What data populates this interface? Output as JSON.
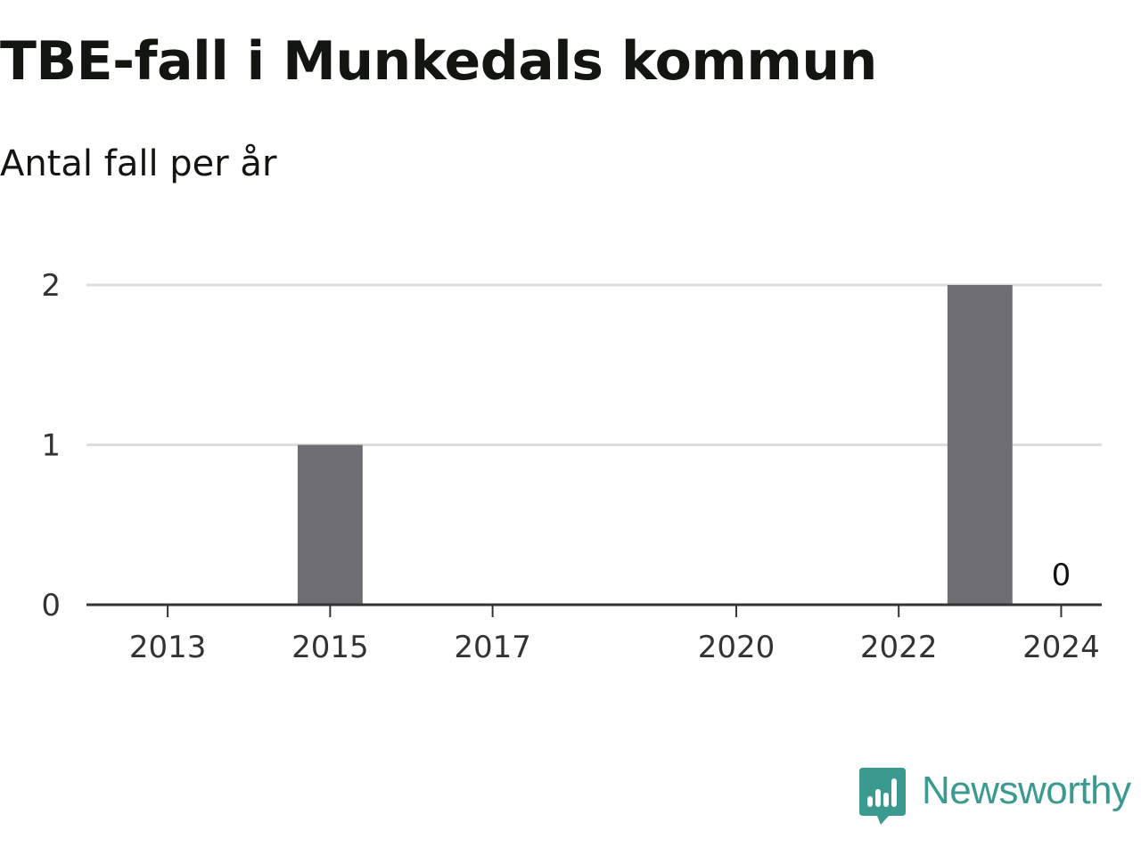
{
  "header": {
    "title": "TBE-fall i Munkedals kommun",
    "subtitle": "Antal fall per år"
  },
  "chart_data": {
    "type": "bar",
    "title": "TBE-fall i Munkedals kommun",
    "subtitle": "Antal fall per år",
    "xlabel": "",
    "ylabel": "",
    "x_range": [
      2012,
      2024.5
    ],
    "ylim": [
      0,
      2
    ],
    "y_ticks": [
      0,
      1,
      2
    ],
    "x_ticks": [
      2013,
      2015,
      2017,
      2020,
      2022,
      2024
    ],
    "grid": "horizontal",
    "series": [
      {
        "x": [
          2013,
          2014,
          2015,
          2016,
          2017,
          2018,
          2019,
          2020,
          2021,
          2022,
          2023,
          2024
        ],
        "values": [
          0,
          0,
          1,
          0,
          0,
          0,
          0,
          0,
          0,
          0,
          2,
          0
        ]
      }
    ],
    "annotations": [
      {
        "x": 2024,
        "text": "0"
      }
    ],
    "colors": {
      "bar": "#6e6d72",
      "grid": "#dddddd",
      "axis": "#333333"
    }
  },
  "logo": {
    "text": "Newsworthy",
    "color": "#3a9a8f",
    "icon": "newsworthy-chat-bars-icon"
  }
}
